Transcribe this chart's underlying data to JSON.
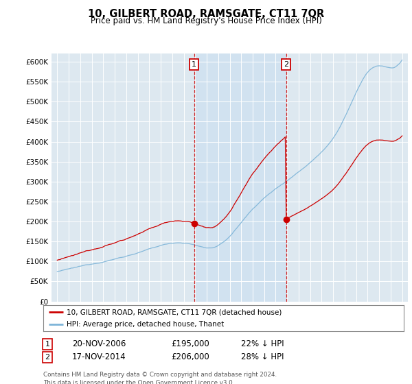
{
  "title": "10, GILBERT ROAD, RAMSGATE, CT11 7QR",
  "subtitle": "Price paid vs. HM Land Registry's House Price Index (HPI)",
  "hpi_label": "HPI: Average price, detached house, Thanet",
  "property_label": "10, GILBERT ROAD, RAMSGATE, CT11 7QR (detached house)",
  "transaction1_date": "20-NOV-2006",
  "transaction1_price": "£195,000",
  "transaction1_pct": "22% ↓ HPI",
  "transaction2_date": "17-NOV-2014",
  "transaction2_price": "£206,000",
  "transaction2_pct": "28% ↓ HPI",
  "footer": "Contains HM Land Registry data © Crown copyright and database right 2024.\nThis data is licensed under the Open Government Licence v3.0.",
  "hpi_color": "#7db4d8",
  "property_color": "#cc0000",
  "marker_color": "#cc0000",
  "vline_color": "#cc0000",
  "background_color": "#ffffff",
  "plot_bg_color": "#dde8f0",
  "shade_color": "#cce0f0",
  "ylim": [
    0,
    600000
  ],
  "yticks": [
    0,
    50000,
    100000,
    150000,
    200000,
    250000,
    300000,
    350000,
    400000,
    450000,
    500000,
    550000,
    600000
  ],
  "transaction1_x": 2006.9,
  "transaction2_x": 2014.9
}
